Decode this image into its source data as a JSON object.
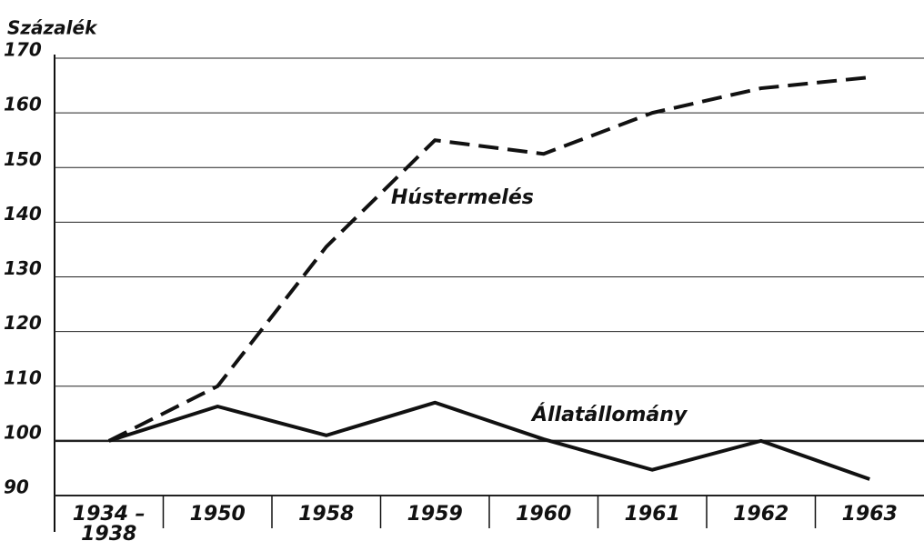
{
  "chart_data": {
    "type": "line",
    "y_axis_label": "Százalék",
    "categories": [
      "1934 – 1938",
      "1950",
      "1958",
      "1959",
      "1960",
      "1961",
      "1962",
      "1963"
    ],
    "series": [
      {
        "name": "Hústermelés",
        "color": "#111111",
        "dashed": true,
        "values": [
          100,
          110,
          135.5,
          155,
          152.5,
          160,
          164.5,
          166.5
        ]
      },
      {
        "name": "Állatállomány",
        "color": "#111111",
        "dashed": false,
        "values": [
          100,
          106.3,
          101,
          107,
          100.3,
          94.7,
          100,
          93
        ]
      }
    ],
    "ylim": [
      90,
      170
    ],
    "yticks": [
      90,
      100,
      110,
      120,
      130,
      140,
      150,
      160,
      170
    ],
    "grid": true
  }
}
